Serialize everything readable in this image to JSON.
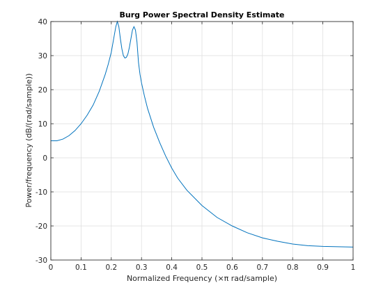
{
  "chart_data": {
    "type": "line",
    "title": "Burg Power Spectral Density Estimate",
    "xlabel": "Normalized Frequency  (×π rad/sample)",
    "ylabel": "Power/frequency (dB/(rad/sample))",
    "xlim": [
      0,
      1
    ],
    "ylim": [
      -30,
      40
    ],
    "xticks": [
      "0",
      "0.1",
      "0.2",
      "0.3",
      "0.4",
      "0.5",
      "0.6",
      "0.7",
      "0.8",
      "0.9",
      "1"
    ],
    "yticks": [
      "-30",
      "-20",
      "-10",
      "0",
      "10",
      "20",
      "30",
      "40"
    ],
    "grid": true,
    "color": "#0072bd",
    "series": [
      {
        "x": [
          0,
          0.02,
          0.04,
          0.06,
          0.08,
          0.1,
          0.12,
          0.14,
          0.16,
          0.18,
          0.19,
          0.2,
          0.205,
          0.21,
          0.215,
          0.22,
          0.225,
          0.23,
          0.235,
          0.24,
          0.245,
          0.25,
          0.255,
          0.26,
          0.265,
          0.27,
          0.275,
          0.28,
          0.285,
          0.29,
          0.295,
          0.3,
          0.31,
          0.32,
          0.34,
          0.36,
          0.38,
          0.4,
          0.42,
          0.45,
          0.5,
          0.55,
          0.6,
          0.65,
          0.7,
          0.75,
          0.8,
          0.85,
          0.9,
          0.95,
          1.0
        ],
        "y": [
          5,
          5,
          5.5,
          6.5,
          8,
          10,
          12.5,
          15.5,
          19.5,
          24.5,
          27.5,
          31,
          33.5,
          36,
          38.5,
          40,
          38.5,
          35,
          32,
          30,
          29.3,
          29.5,
          30.5,
          32.5,
          35,
          37.5,
          38.5,
          37.5,
          34,
          28,
          24.5,
          22,
          18,
          14.5,
          9,
          4.5,
          0.5,
          -3,
          -6,
          -9.5,
          -14,
          -17.5,
          -20,
          -22,
          -23.5,
          -24.5,
          -25.3,
          -25.8,
          -26,
          -26.1,
          -26.2
        ]
      }
    ]
  }
}
